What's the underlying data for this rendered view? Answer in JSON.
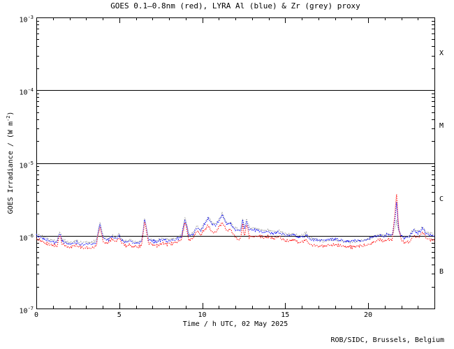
{
  "chart": {
    "title": "GOES 0.1–0.8nm (red), LYRA Al (blue) & Zr (grey) proxy",
    "xlabel": "Time / h UTC, 02 May 2025",
    "ylabel_pre": "GOES Irradiance / (W m",
    "ylabel_exp": "-2",
    "ylabel_post": ")"
  },
  "footer": {
    "credit": "ROB/SIDC, Brussels, Belgium"
  },
  "colors": {
    "background": "#ffffff",
    "frame": "#000000",
    "goes_red": "#ff0000",
    "lyra_al_blue": "#0000ff",
    "lyra_zr_grey": "#9a9a9a"
  },
  "chart_data": {
    "type": "scatter",
    "title": "GOES 0.1–0.8nm (red), LYRA Al (blue) & Zr (grey) proxy",
    "xlabel": "Time / h UTC, 02 May 2025",
    "ylabel": "GOES Irradiance / (W m⁻²)",
    "x_unit": "hour UTC, 02 May 2025",
    "xlim": [
      0,
      24
    ],
    "x_major_ticks": [
      0,
      5,
      10,
      15,
      20
    ],
    "x_minor_tick_step": 1,
    "y_scale": "log",
    "ylim": [
      1e-07,
      0.001
    ],
    "y_tick_exponents": [
      -3,
      -4,
      -5,
      -6,
      -7
    ],
    "y_tick_labels": [
      "10⁻³",
      "10⁻⁴",
      "10⁻⁵",
      "10⁻⁶",
      "10⁻⁷"
    ],
    "grid": false,
    "flare_class_lines": [
      0.0001,
      1e-05,
      1e-06
    ],
    "flare_class_labels": [
      {
        "label": "X",
        "center_log10": -3.5
      },
      {
        "label": "M",
        "center_log10": -4.5
      },
      {
        "label": "C",
        "center_log10": -5.5
      },
      {
        "label": "B",
        "center_log10": -6.5
      }
    ],
    "value_scale": 1e-07,
    "value_unit": "W m^-2 (points given in units of 1e-7)",
    "series": [
      {
        "name": "GOES 0.1-0.8nm",
        "legend_color_word": "red",
        "color": "#ff0000",
        "points": [
          [
            0,
            9.2
          ],
          [
            0.2,
            8.8
          ],
          [
            0.45,
            8.2
          ],
          [
            0.7,
            7.8
          ],
          [
            1.0,
            7.4
          ],
          [
            1.25,
            7.3
          ],
          [
            1.42,
            10.5
          ],
          [
            1.55,
            7.8
          ],
          [
            1.8,
            7.1
          ],
          [
            2.1,
            6.9
          ],
          [
            2.35,
            7.4
          ],
          [
            2.55,
            7.0
          ],
          [
            2.9,
            6.8
          ],
          [
            3.3,
            6.9
          ],
          [
            3.6,
            7.2
          ],
          [
            3.83,
            13.5
          ],
          [
            4.05,
            8.2
          ],
          [
            4.3,
            7.8
          ],
          [
            4.55,
            9.0
          ],
          [
            4.75,
            8.2
          ],
          [
            5.0,
            9.3
          ],
          [
            5.15,
            7.8
          ],
          [
            5.45,
            7.2
          ],
          [
            5.65,
            7.6
          ],
          [
            5.9,
            7.0
          ],
          [
            6.15,
            7.1
          ],
          [
            6.35,
            7.4
          ],
          [
            6.53,
            15.9
          ],
          [
            6.75,
            8.0
          ],
          [
            7.0,
            7.5
          ],
          [
            7.3,
            7.3
          ],
          [
            7.6,
            7.9
          ],
          [
            7.9,
            7.6
          ],
          [
            8.2,
            7.8
          ],
          [
            8.5,
            8.2
          ],
          [
            8.75,
            8.6
          ],
          [
            8.97,
            16.0
          ],
          [
            9.2,
            8.8
          ],
          [
            9.45,
            9.4
          ],
          [
            9.7,
            11.8
          ],
          [
            9.9,
            10.2
          ],
          [
            10.1,
            11.8
          ],
          [
            10.36,
            13.9
          ],
          [
            10.6,
            11.2
          ],
          [
            10.8,
            11.0
          ],
          [
            11.0,
            13.0
          ],
          [
            11.2,
            15.4
          ],
          [
            11.5,
            11.5
          ],
          [
            11.7,
            12.5
          ],
          [
            11.9,
            10.0
          ],
          [
            12.1,
            9.2
          ],
          [
            12.3,
            8.9
          ],
          [
            12.45,
            15.0
          ],
          [
            12.55,
            9.5
          ],
          [
            12.68,
            14.5
          ],
          [
            12.85,
            9.5
          ],
          [
            13.1,
            9.8
          ],
          [
            13.4,
            9.9
          ],
          [
            13.7,
            9.5
          ],
          [
            14.0,
            9.7
          ],
          [
            14.3,
            9.0
          ],
          [
            14.6,
            9.9
          ],
          [
            14.9,
            8.8
          ],
          [
            15.2,
            8.4
          ],
          [
            15.5,
            8.9
          ],
          [
            15.8,
            8.0
          ],
          [
            16.1,
            8.3
          ],
          [
            16.25,
            9.0
          ],
          [
            16.5,
            7.6
          ],
          [
            16.8,
            7.3
          ],
          [
            17.1,
            7.2
          ],
          [
            17.5,
            7.3
          ],
          [
            17.9,
            7.6
          ],
          [
            18.2,
            7.4
          ],
          [
            18.6,
            7.1
          ],
          [
            19.0,
            7.0
          ],
          [
            19.4,
            7.2
          ],
          [
            19.8,
            7.4
          ],
          [
            20.1,
            7.8
          ],
          [
            20.4,
            8.3
          ],
          [
            20.7,
            8.9
          ],
          [
            20.95,
            8.4
          ],
          [
            21.2,
            9.1
          ],
          [
            21.45,
            8.6
          ],
          [
            21.62,
            20.0
          ],
          [
            21.72,
            38.0
          ],
          [
            21.82,
            14.0
          ],
          [
            22.0,
            8.8
          ],
          [
            22.2,
            7.9
          ],
          [
            22.5,
            8.4
          ],
          [
            22.75,
            10.3
          ],
          [
            23.0,
            9.3
          ],
          [
            23.3,
            11.3
          ],
          [
            23.5,
            9.2
          ],
          [
            23.7,
            8.8
          ],
          [
            24,
            8.6
          ]
        ]
      },
      {
        "name": "LYRA Al proxy",
        "legend_color_word": "blue",
        "color": "#0000ff",
        "points": [
          [
            0,
            10.2
          ],
          [
            0.2,
            9.7
          ],
          [
            0.45,
            9.0
          ],
          [
            0.7,
            8.6
          ],
          [
            1.0,
            8.2
          ],
          [
            1.25,
            8.1
          ],
          [
            1.42,
            11.0
          ],
          [
            1.55,
            8.6
          ],
          [
            1.8,
            7.9
          ],
          [
            2.1,
            7.7
          ],
          [
            2.35,
            8.2
          ],
          [
            2.55,
            7.8
          ],
          [
            2.9,
            7.6
          ],
          [
            3.3,
            7.7
          ],
          [
            3.6,
            8.0
          ],
          [
            3.83,
            14.3
          ],
          [
            4.05,
            9.0
          ],
          [
            4.3,
            8.6
          ],
          [
            4.55,
            9.8
          ],
          [
            4.75,
            9.0
          ],
          [
            5.0,
            10.1
          ],
          [
            5.15,
            8.6
          ],
          [
            5.45,
            8.0
          ],
          [
            5.65,
            8.4
          ],
          [
            5.9,
            7.8
          ],
          [
            6.15,
            7.9
          ],
          [
            6.35,
            8.2
          ],
          [
            6.53,
            16.8
          ],
          [
            6.75,
            8.9
          ],
          [
            7.0,
            8.4
          ],
          [
            7.3,
            8.2
          ],
          [
            7.6,
            8.9
          ],
          [
            7.9,
            8.5
          ],
          [
            8.2,
            8.7
          ],
          [
            8.5,
            9.1
          ],
          [
            8.75,
            9.6
          ],
          [
            8.97,
            17.2
          ],
          [
            9.2,
            9.8
          ],
          [
            9.45,
            10.5
          ],
          [
            9.7,
            13.0
          ],
          [
            9.9,
            11.5
          ],
          [
            10.1,
            13.8
          ],
          [
            10.36,
            17.4
          ],
          [
            10.6,
            14.2
          ],
          [
            10.8,
            13.8
          ],
          [
            11.0,
            16.0
          ],
          [
            11.2,
            19.5
          ],
          [
            11.5,
            14.0
          ],
          [
            11.7,
            15.0
          ],
          [
            11.9,
            12.5
          ],
          [
            12.1,
            11.8
          ],
          [
            12.3,
            11.5
          ],
          [
            12.45,
            16.6
          ],
          [
            12.55,
            12.2
          ],
          [
            12.68,
            15.8
          ],
          [
            12.85,
            12.2
          ],
          [
            13.1,
            12.0
          ],
          [
            13.4,
            11.8
          ],
          [
            13.7,
            11.2
          ],
          [
            14.0,
            11.3
          ],
          [
            14.3,
            10.6
          ],
          [
            14.6,
            11.4
          ],
          [
            14.9,
            10.4
          ],
          [
            15.2,
            10.0
          ],
          [
            15.5,
            10.4
          ],
          [
            15.8,
            9.4
          ],
          [
            16.1,
            9.7
          ],
          [
            16.25,
            10.6
          ],
          [
            16.5,
            9.0
          ],
          [
            16.8,
            8.7
          ],
          [
            17.1,
            8.6
          ],
          [
            17.5,
            8.7
          ],
          [
            17.9,
            9.0
          ],
          [
            18.2,
            8.8
          ],
          [
            18.6,
            8.5
          ],
          [
            19.0,
            8.4
          ],
          [
            19.4,
            8.6
          ],
          [
            19.8,
            8.8
          ],
          [
            20.1,
            9.2
          ],
          [
            20.4,
            9.7
          ],
          [
            20.7,
            10.3
          ],
          [
            20.95,
            9.8
          ],
          [
            21.2,
            10.5
          ],
          [
            21.45,
            10.0
          ],
          [
            21.62,
            16.0
          ],
          [
            21.72,
            30.0
          ],
          [
            21.82,
            13.0
          ],
          [
            22.0,
            10.0
          ],
          [
            22.2,
            9.2
          ],
          [
            22.5,
            9.8
          ],
          [
            22.75,
            11.8
          ],
          [
            23.0,
            10.8
          ],
          [
            23.3,
            12.6
          ],
          [
            23.5,
            10.6
          ],
          [
            23.7,
            10.3
          ],
          [
            24,
            10.1
          ]
        ]
      },
      {
        "name": "LYRA Zr proxy",
        "legend_color_word": "grey",
        "color": "#9a9a9a",
        "points": [
          [
            0,
            10.7
          ],
          [
            0.2,
            10.2
          ],
          [
            0.45,
            9.5
          ],
          [
            0.7,
            9.0
          ],
          [
            1.0,
            8.6
          ],
          [
            1.25,
            8.5
          ],
          [
            1.42,
            11.4
          ],
          [
            1.55,
            9.0
          ],
          [
            1.8,
            8.3
          ],
          [
            2.1,
            8.1
          ],
          [
            2.35,
            8.6
          ],
          [
            2.55,
            8.2
          ],
          [
            2.9,
            8.0
          ],
          [
            3.3,
            8.1
          ],
          [
            3.6,
            8.4
          ],
          [
            3.83,
            15.0
          ],
          [
            4.05,
            9.4
          ],
          [
            4.3,
            9.0
          ],
          [
            4.55,
            10.2
          ],
          [
            4.75,
            9.4
          ],
          [
            5.0,
            10.6
          ],
          [
            5.15,
            9.0
          ],
          [
            5.45,
            8.4
          ],
          [
            5.65,
            8.8
          ],
          [
            5.9,
            8.2
          ],
          [
            6.15,
            8.3
          ],
          [
            6.35,
            8.6
          ],
          [
            6.53,
            17.6
          ],
          [
            6.75,
            9.3
          ],
          [
            7.0,
            8.8
          ],
          [
            7.3,
            8.6
          ],
          [
            7.6,
            9.3
          ],
          [
            7.9,
            8.9
          ],
          [
            8.2,
            9.1
          ],
          [
            8.5,
            9.5
          ],
          [
            8.75,
            10.0
          ],
          [
            8.97,
            18.0
          ],
          [
            9.2,
            10.2
          ],
          [
            9.45,
            11.0
          ],
          [
            9.7,
            13.6
          ],
          [
            9.9,
            12.0
          ],
          [
            10.1,
            14.4
          ],
          [
            10.36,
            18.2
          ],
          [
            10.6,
            14.9
          ],
          [
            10.8,
            14.4
          ],
          [
            11.0,
            16.8
          ],
          [
            11.2,
            20.4
          ],
          [
            11.5,
            14.7
          ],
          [
            11.7,
            15.7
          ],
          [
            11.9,
            13.1
          ],
          [
            12.1,
            12.4
          ],
          [
            12.3,
            12.0
          ],
          [
            12.45,
            17.4
          ],
          [
            12.55,
            12.8
          ],
          [
            12.68,
            16.5
          ],
          [
            12.85,
            12.8
          ],
          [
            13.1,
            12.6
          ],
          [
            13.4,
            12.4
          ],
          [
            13.7,
            11.8
          ],
          [
            14.0,
            11.9
          ],
          [
            14.3,
            11.1
          ],
          [
            14.6,
            12.0
          ],
          [
            14.9,
            10.9
          ],
          [
            15.2,
            10.5
          ],
          [
            15.5,
            10.9
          ],
          [
            15.8,
            9.9
          ],
          [
            16.1,
            10.2
          ],
          [
            16.25,
            11.1
          ],
          [
            16.5,
            9.4
          ],
          [
            16.8,
            8.9
          ],
          [
            17.1,
            8.5
          ],
          [
            17.5,
            8.5
          ],
          [
            17.9,
            8.8
          ],
          [
            18.2,
            8.6
          ],
          [
            18.6,
            8.3
          ],
          [
            19.0,
            8.2
          ],
          [
            19.4,
            8.4
          ],
          [
            19.8,
            8.7
          ],
          [
            20.1,
            9.3
          ],
          [
            20.4,
            9.9
          ],
          [
            20.7,
            10.6
          ],
          [
            20.95,
            10.0
          ],
          [
            21.2,
            10.8
          ],
          [
            21.45,
            10.2
          ],
          [
            21.62,
            13.0
          ],
          [
            21.72,
            16.0
          ],
          [
            21.82,
            12.0
          ],
          [
            22.0,
            10.3
          ],
          [
            22.2,
            9.5
          ],
          [
            22.5,
            10.1
          ],
          [
            22.75,
            12.2
          ],
          [
            23.0,
            11.2
          ],
          [
            23.3,
            13.1
          ],
          [
            23.5,
            11.0
          ],
          [
            23.7,
            10.7
          ],
          [
            24,
            10.5
          ]
        ]
      }
    ],
    "legend_position": "encoded in title"
  }
}
